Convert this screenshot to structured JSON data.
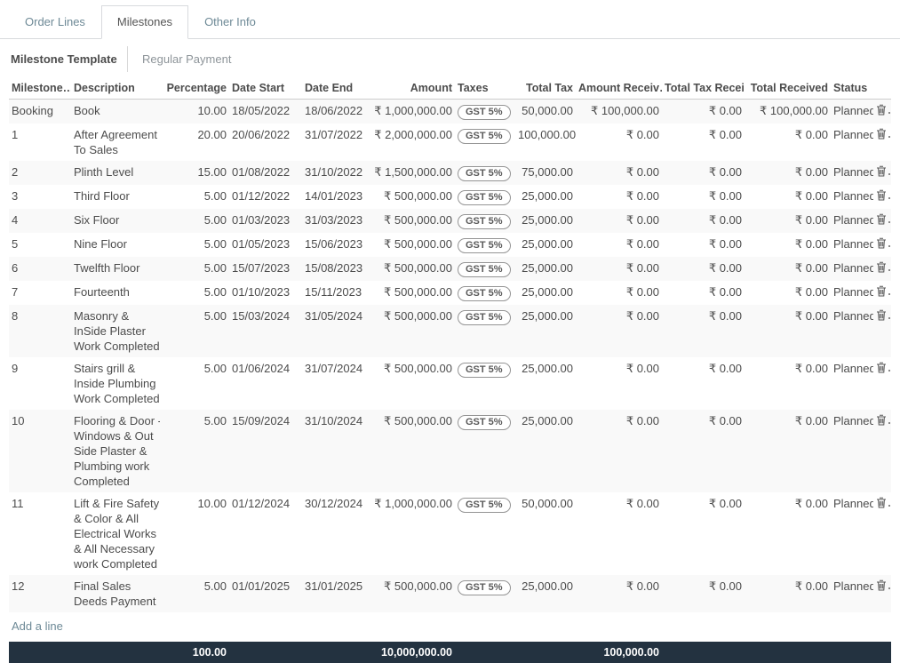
{
  "colors": {
    "accent_teal": "#6d8996",
    "footer_bg": "#233240",
    "stripe": "#f9f9f9",
    "badge_border": "#949494"
  },
  "tabs": [
    {
      "label": "Order Lines",
      "active": false
    },
    {
      "label": "Milestones",
      "active": true
    },
    {
      "label": "Other Info",
      "active": false
    }
  ],
  "fields": {
    "milestone_template_label": "Milestone Template",
    "milestone_template_value": "Regular Payment"
  },
  "table": {
    "headers": [
      "Milestone…",
      "Description",
      "Percentage",
      "Date Start",
      "Date End",
      "Amount",
      "Taxes",
      "Total Tax",
      "Amount Receiv…",
      "Total Tax Recei…",
      "Total Received",
      "Status",
      ""
    ],
    "rows": [
      {
        "milestone": "Booking",
        "description": "Book",
        "percentage": "10.00",
        "date_start": "18/05/2022",
        "date_end": "18/06/2022",
        "amount": "₹ 1,000,000.00",
        "tax": "GST 5%",
        "total_tax": "50,000.00",
        "amount_received": "₹ 100,000.00",
        "total_tax_received": "₹ 0.00",
        "total_received": "₹ 100,000.00",
        "status": "Planned"
      },
      {
        "milestone": "1",
        "description": "After Agreement\nTo Sales",
        "percentage": "20.00",
        "date_start": "20/06/2022",
        "date_end": "31/07/2022",
        "amount": "₹ 2,000,000.00",
        "tax": "GST 5%",
        "total_tax": "100,000.00",
        "amount_received": "₹ 0.00",
        "total_tax_received": "₹ 0.00",
        "total_received": "₹ 0.00",
        "status": "Planned"
      },
      {
        "milestone": "2",
        "description": "Plinth Level",
        "percentage": "15.00",
        "date_start": "01/08/2022",
        "date_end": "31/10/2022",
        "amount": "₹ 1,500,000.00",
        "tax": "GST 5%",
        "total_tax": "75,000.00",
        "amount_received": "₹ 0.00",
        "total_tax_received": "₹ 0.00",
        "total_received": "₹ 0.00",
        "status": "Planned"
      },
      {
        "milestone": "3",
        "description": "Third Floor",
        "percentage": "5.00",
        "date_start": "01/12/2022",
        "date_end": "14/01/2023",
        "amount": "₹ 500,000.00",
        "tax": "GST 5%",
        "total_tax": "25,000.00",
        "amount_received": "₹ 0.00",
        "total_tax_received": "₹ 0.00",
        "total_received": "₹ 0.00",
        "status": "Planned"
      },
      {
        "milestone": "4",
        "description": "Six Floor",
        "percentage": "5.00",
        "date_start": "01/03/2023",
        "date_end": "31/03/2023",
        "amount": "₹ 500,000.00",
        "tax": "GST 5%",
        "total_tax": "25,000.00",
        "amount_received": "₹ 0.00",
        "total_tax_received": "₹ 0.00",
        "total_received": "₹ 0.00",
        "status": "Planned"
      },
      {
        "milestone": "5",
        "description": "Nine Floor",
        "percentage": "5.00",
        "date_start": "01/05/2023",
        "date_end": "15/06/2023",
        "amount": "₹ 500,000.00",
        "tax": "GST 5%",
        "total_tax": "25,000.00",
        "amount_received": "₹ 0.00",
        "total_tax_received": "₹ 0.00",
        "total_received": "₹ 0.00",
        "status": "Planned"
      },
      {
        "milestone": "6",
        "description": "Twelfth Floor",
        "percentage": "5.00",
        "date_start": "15/07/2023",
        "date_end": "15/08/2023",
        "amount": "₹ 500,000.00",
        "tax": "GST 5%",
        "total_tax": "25,000.00",
        "amount_received": "₹ 0.00",
        "total_tax_received": "₹ 0.00",
        "total_received": "₹ 0.00",
        "status": "Planned"
      },
      {
        "milestone": "7",
        "description": "Fourteenth",
        "percentage": "5.00",
        "date_start": "01/10/2023",
        "date_end": "15/11/2023",
        "amount": "₹ 500,000.00",
        "tax": "GST 5%",
        "total_tax": "25,000.00",
        "amount_received": "₹ 0.00",
        "total_tax_received": "₹ 0.00",
        "total_received": "₹ 0.00",
        "status": "Planned"
      },
      {
        "milestone": "8",
        "description": "Masonry &\nInSide Plaster\nWork Completed",
        "percentage": "5.00",
        "date_start": "15/03/2024",
        "date_end": "31/05/2024",
        "amount": "₹ 500,000.00",
        "tax": "GST 5%",
        "total_tax": "25,000.00",
        "amount_received": "₹ 0.00",
        "total_tax_received": "₹ 0.00",
        "total_received": "₹ 0.00",
        "status": "Planned"
      },
      {
        "milestone": "9",
        "description": "Stairs grill &\nInside Plumbing\nWork Completed",
        "percentage": "5.00",
        "date_start": "01/06/2024",
        "date_end": "31/07/2024",
        "amount": "₹ 500,000.00",
        "tax": "GST 5%",
        "total_tax": "25,000.00",
        "amount_received": "₹ 0.00",
        "total_tax_received": "₹ 0.00",
        "total_received": "₹ 0.00",
        "status": "Planned"
      },
      {
        "milestone": "10",
        "description": "Flooring & Door -\nWindows & Out\nSide Plaster &\nPlumbing work\nCompleted",
        "percentage": "5.00",
        "date_start": "15/09/2024",
        "date_end": "31/10/2024",
        "amount": "₹ 500,000.00",
        "tax": "GST 5%",
        "total_tax": "25,000.00",
        "amount_received": "₹ 0.00",
        "total_tax_received": "₹ 0.00",
        "total_received": "₹ 0.00",
        "status": "Planned"
      },
      {
        "milestone": "11",
        "description": "Lift & Fire Safety\n& Color & All\nElectrical Works\n& All Necessary\nwork Completed",
        "percentage": "10.00",
        "date_start": "01/12/2024",
        "date_end": "30/12/2024",
        "amount": "₹ 1,000,000.00",
        "tax": "GST 5%",
        "total_tax": "50,000.00",
        "amount_received": "₹ 0.00",
        "total_tax_received": "₹ 0.00",
        "total_received": "₹ 0.00",
        "status": "Planned"
      },
      {
        "milestone": "12",
        "description": "Final Sales\nDeeds Payment",
        "percentage": "5.00",
        "date_start": "01/01/2025",
        "date_end": "31/01/2025",
        "amount": "₹ 500,000.00",
        "tax": "GST 5%",
        "total_tax": "25,000.00",
        "amount_received": "₹ 0.00",
        "total_tax_received": "₹ 0.00",
        "total_received": "₹ 0.00",
        "status": "Planned"
      }
    ],
    "add_line_label": "Add a line",
    "footer": {
      "percentage_total": "100.00",
      "amount_total": "10,000,000.00",
      "amount_received_total": "100,000.00"
    }
  }
}
